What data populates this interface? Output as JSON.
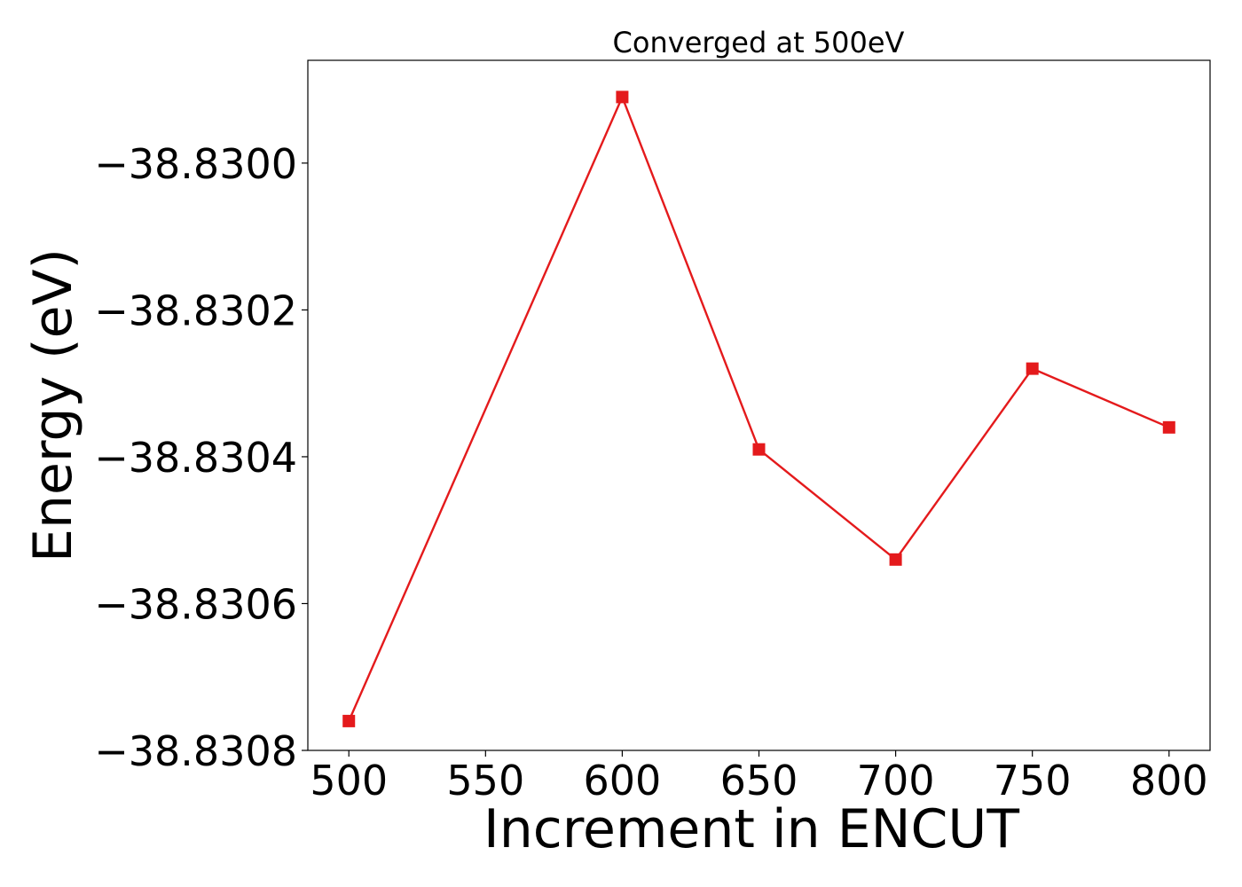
{
  "chart_data": {
    "type": "line",
    "title": "Converged at 500eV",
    "xlabel": "Increment in ENCUT",
    "ylabel": "Energy (eV)",
    "x": [
      500,
      600,
      650,
      700,
      750,
      800
    ],
    "series": [
      {
        "values": [
          -38.83076,
          -38.82991,
          -38.83039,
          -38.83054,
          -38.83028,
          -38.83036
        ],
        "color": "#e41a1c",
        "marker": "square"
      }
    ],
    "xticks": [
      500,
      550,
      600,
      650,
      700,
      750,
      800
    ],
    "xtick_labels": [
      "500",
      "550",
      "600",
      "650",
      "700",
      "750",
      "800"
    ],
    "yticks": [
      -38.83,
      -38.8302,
      -38.8304,
      -38.8306,
      -38.8308
    ],
    "ytick_labels": [
      "−38.8300",
      "−38.8302",
      "−38.8304",
      "−38.8306",
      "−38.8308"
    ],
    "xlim": [
      485,
      815
    ],
    "ylim": [
      -38.8308,
      -38.82986
    ],
    "grid": false,
    "legend": "none"
  }
}
